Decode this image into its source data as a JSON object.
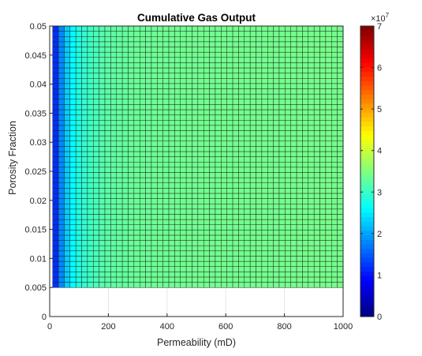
{
  "chart_data": {
    "type": "heatmap",
    "title": "Cumulative Gas Output",
    "xlabel": "Permeability (mD)",
    "ylabel": "Porosity Fraction",
    "xlim": [
      0,
      1000
    ],
    "ylim": [
      0,
      0.05
    ],
    "xticks": [
      "0",
      "200",
      "400",
      "600",
      "800",
      "1000"
    ],
    "yticks": [
      "0",
      "0.005",
      "0.01",
      "0.015",
      "0.02",
      "0.025",
      "0.03",
      "0.035",
      "0.04",
      "0.045",
      "0.05"
    ],
    "grid": true,
    "x_range": [
      10,
      1000
    ],
    "y_range": [
      0.005,
      0.05
    ],
    "grid_size": [
      50,
      50
    ],
    "colormap": "jet",
    "color_limits": [
      0,
      70000000
    ],
    "colorbar": {
      "ticks": [
        "0",
        "1",
        "2",
        "3",
        "4",
        "5",
        "6",
        "7"
      ],
      "multiplier": "×10",
      "exponent": "7"
    },
    "value_profile_by_permeability": [
      {
        "x": 10,
        "value": 8000000
      },
      {
        "x": 20,
        "value": 12000000
      },
      {
        "x": 30,
        "value": 15500000
      },
      {
        "x": 50,
        "value": 21000000
      },
      {
        "x": 70,
        "value": 25000000
      },
      {
        "x": 100,
        "value": 28500000
      },
      {
        "x": 150,
        "value": 31000000
      },
      {
        "x": 200,
        "value": 32500000
      },
      {
        "x": 300,
        "value": 33500000
      },
      {
        "x": 500,
        "value": 34000000
      },
      {
        "x": 1000,
        "value": 34300000
      }
    ]
  },
  "colors": {
    "edge": "#1a1a1a",
    "axis": "#262626",
    "grid": "#e6e6e6"
  }
}
